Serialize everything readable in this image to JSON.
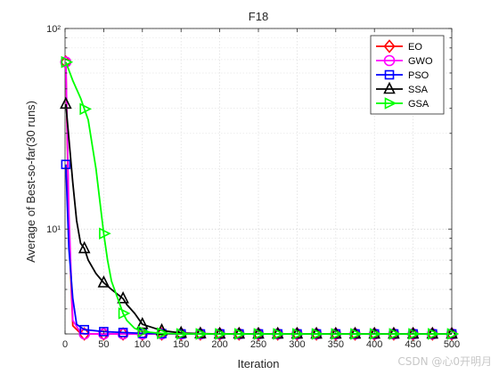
{
  "watermark": "CSDN @心0开明月",
  "chart_data": {
    "type": "line",
    "title": "F18",
    "xlabel": "Iteration",
    "ylabel": "Average of Best-so-far(30 runs)",
    "xlim": [
      0,
      500
    ],
    "ylim": [
      3,
      100
    ],
    "yscale": "log",
    "grid": true,
    "legend_position": "top-right",
    "x_ticks": [
      0,
      50,
      100,
      150,
      200,
      250,
      300,
      350,
      400,
      450,
      500
    ],
    "y_major_ticks": [
      {
        "value": 10,
        "label": "10¹"
      },
      {
        "value": 100,
        "label": "10²"
      }
    ],
    "series": [
      {
        "name": "EO",
        "color": "#ff0000",
        "marker": "diamond",
        "x": [
          1,
          5,
          10,
          20,
          25,
          50,
          75,
          100,
          150,
          200,
          300,
          400,
          500
        ],
        "y": [
          68,
          10,
          3.3,
          3.02,
          3.0,
          3.0,
          3.0,
          3.0,
          3.0,
          3.0,
          3.0,
          3.0,
          3.0
        ]
      },
      {
        "name": "GWO",
        "color": "#ff00ff",
        "marker": "circle",
        "x": [
          1,
          5,
          10,
          20,
          25,
          50,
          75,
          100,
          150,
          200,
          300,
          400,
          500
        ],
        "y": [
          68,
          12,
          3.5,
          3.05,
          3.0,
          3.0,
          3.0,
          3.0,
          3.0,
          3.0,
          3.0,
          3.0,
          3.0
        ]
      },
      {
        "name": "PSO",
        "color": "#0000ff",
        "marker": "square",
        "x": [
          1,
          5,
          10,
          15,
          25,
          50,
          75,
          100,
          150,
          200,
          300,
          400,
          500
        ],
        "y": [
          21,
          8,
          4.5,
          3.35,
          3.15,
          3.08,
          3.05,
          3.02,
          3.0,
          3.0,
          3.0,
          3.0,
          3.0
        ]
      },
      {
        "name": "SSA",
        "color": "#000000",
        "marker": "triangle-up",
        "x": [
          1,
          10,
          15,
          20,
          25,
          30,
          40,
          50,
          60,
          75,
          80,
          90,
          100,
          125,
          150,
          175,
          200,
          250,
          300,
          350,
          400,
          450,
          500
        ],
        "y": [
          42,
          17,
          11,
          8.5,
          8.0,
          7.0,
          6.0,
          5.4,
          5.0,
          4.5,
          4.2,
          3.8,
          3.35,
          3.12,
          3.03,
          3.01,
          3.0,
          3.0,
          3.0,
          3.0,
          3.0,
          3.0,
          3.0
        ]
      },
      {
        "name": "GSA",
        "color": "#00ff00",
        "marker": "triangle-right",
        "x": [
          1,
          10,
          20,
          30,
          40,
          50,
          55,
          60,
          70,
          75,
          80,
          90,
          100,
          125,
          150,
          175,
          200,
          250,
          300,
          350,
          400,
          450,
          500
        ],
        "y": [
          68,
          55,
          45,
          35,
          20,
          9.5,
          7.0,
          5.5,
          4.3,
          3.8,
          3.5,
          3.2,
          3.08,
          3.02,
          3.0,
          3.0,
          3.0,
          3.0,
          3.0,
          3.0,
          3.0,
          3.0,
          3.0
        ]
      }
    ]
  }
}
